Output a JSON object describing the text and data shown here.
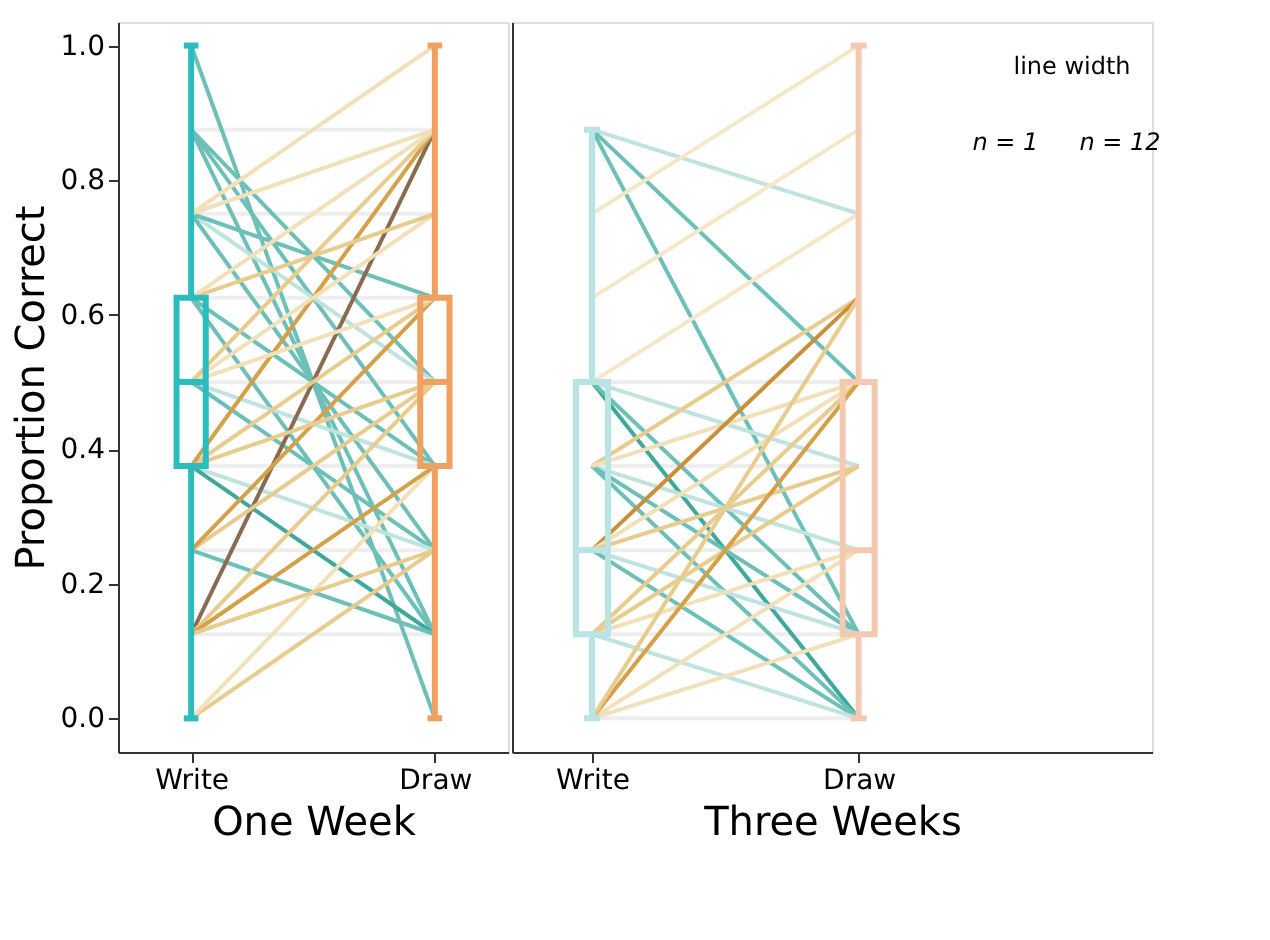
{
  "chart_data": [
    {
      "type": "box",
      "xlabel": "One Week",
      "ylabel": "Proportion Correct",
      "categories": [
        "Write",
        "Draw"
      ],
      "colors": [
        "#2bbdbd",
        "#f0a060"
      ],
      "boxes": [
        {
          "low": 0,
          "q1": 0.375,
          "median": 0.5,
          "q3": 0.625,
          "high": 1.0
        },
        {
          "low": 0,
          "q1": 0.375,
          "median": 0.5,
          "q3": 0.625,
          "high": 1.0
        }
      ],
      "ylim": [
        -0.05,
        1.035
      ],
      "yticks": [
        {
          "value": 0,
          "label": "0.0"
        },
        {
          "value": 0.2,
          "label": "0.2"
        },
        {
          "value": 0.4,
          "label": "0.4"
        },
        {
          "value": 0.6,
          "label": "0.6"
        },
        {
          "value": 0.8,
          "label": "0.8"
        },
        {
          "value": 1,
          "label": "1.0"
        }
      ],
      "grid": false,
      "series": [
        {
          "type": "line",
          "color": "#eeeeee",
          "values": [
            0.875,
            0.875
          ]
        },
        {
          "type": "line",
          "color": "#eeeeee",
          "values": [
            0.75,
            0.75
          ]
        },
        {
          "type": "line",
          "color": "#eeeeee",
          "values": [
            0.625,
            0.625
          ]
        },
        {
          "type": "line",
          "color": "#eeeeee",
          "values": [
            0.5,
            0.5
          ]
        },
        {
          "type": "line",
          "color": "#eeeeee",
          "values": [
            0.375,
            0.375
          ]
        },
        {
          "type": "line",
          "color": "#eeeeee",
          "values": [
            0.25,
            0.25
          ]
        },
        {
          "type": "line",
          "color": "#eeeeee",
          "values": [
            0.125,
            0.125
          ]
        },
        {
          "type": "line",
          "color": "#6cc0b8",
          "values": [
            1.0,
            0.0
          ]
        },
        {
          "type": "line",
          "color": "#6cc0b8",
          "values": [
            0.875,
            0.5
          ]
        },
        {
          "type": "line",
          "color": "#6cc0b8",
          "values": [
            0.875,
            0.375
          ]
        },
        {
          "type": "line",
          "color": "#6cc0b8",
          "values": [
            0.875,
            0.125
          ]
        },
        {
          "type": "line",
          "color": "#bfe3df",
          "values": [
            0.75,
            0.5
          ]
        },
        {
          "type": "line",
          "color": "#6cc0b8",
          "values": [
            0.75,
            0.625
          ]
        },
        {
          "type": "line",
          "color": "#6cc0b8",
          "values": [
            0.75,
            0.25
          ]
        },
        {
          "type": "line",
          "color": "#6cc0b8",
          "values": [
            0.625,
            0.375
          ]
        },
        {
          "type": "line",
          "color": "#6cc0b8",
          "values": [
            0.625,
            0.125
          ]
        },
        {
          "type": "line",
          "color": "#bfe3df",
          "values": [
            0.5,
            0.375
          ]
        },
        {
          "type": "line",
          "color": "#6cc0b8",
          "values": [
            0.5,
            0.25
          ]
        },
        {
          "type": "line",
          "color": "#bfe3df",
          "values": [
            0.375,
            0.25
          ]
        },
        {
          "type": "line",
          "color": "#3fa89c",
          "values": [
            0.375,
            0.125
          ]
        },
        {
          "type": "line",
          "color": "#6cc0b8",
          "values": [
            0.25,
            0.125
          ]
        },
        {
          "type": "line",
          "color": "#e8cc8e",
          "values": [
            0.0,
            0.25
          ]
        },
        {
          "type": "line",
          "color": "#f2e0b8",
          "values": [
            0.0,
            0.375
          ]
        },
        {
          "type": "line",
          "color": "#8a6a50",
          "values": [
            0.125,
            0.875
          ]
        },
        {
          "type": "line",
          "color": "#e8cc8e",
          "values": [
            0.125,
            0.5
          ]
        },
        {
          "type": "line",
          "color": "#d4a04a",
          "values": [
            0.125,
            0.375
          ]
        },
        {
          "type": "line",
          "color": "#e8cc8e",
          "values": [
            0.125,
            0.25
          ]
        },
        {
          "type": "line",
          "color": "#e8cc8e",
          "values": [
            0.25,
            0.5
          ]
        },
        {
          "type": "line",
          "color": "#d4a04a",
          "values": [
            0.25,
            0.625
          ]
        },
        {
          "type": "line",
          "color": "#e8cc8e",
          "values": [
            0.375,
            0.625
          ]
        },
        {
          "type": "line",
          "color": "#d4a04a",
          "values": [
            0.375,
            0.875
          ]
        },
        {
          "type": "line",
          "color": "#e8cc8e",
          "values": [
            0.375,
            0.5
          ]
        },
        {
          "type": "line",
          "color": "#f2e0b8",
          "values": [
            0.5,
            0.625
          ]
        },
        {
          "type": "line",
          "color": "#f2e0b8",
          "values": [
            0.5,
            0.75
          ]
        },
        {
          "type": "line",
          "color": "#e8cc8e",
          "values": [
            0.5,
            0.875
          ]
        },
        {
          "type": "line",
          "color": "#e8cc8e",
          "values": [
            0.625,
            0.75
          ]
        },
        {
          "type": "line",
          "color": "#f2e0b8",
          "values": [
            0.625,
            0.875
          ]
        },
        {
          "type": "line",
          "color": "#f2e0b8",
          "values": [
            0.75,
            0.875
          ]
        },
        {
          "type": "line",
          "color": "#f2e0b8",
          "values": [
            0.75,
            1.0
          ]
        }
      ]
    },
    {
      "type": "box",
      "xlabel": "Three Weeks",
      "categories": [
        "Write",
        "Draw"
      ],
      "colors": [
        "#b8e4e4",
        "#f4c9b0"
      ],
      "boxes": [
        {
          "low": 0,
          "q1": 0.125,
          "median": 0.25,
          "q3": 0.5,
          "high": 0.875
        },
        {
          "low": 0,
          "q1": 0.125,
          "median": 0.25,
          "q3": 0.5,
          "high": 1.0
        }
      ],
      "ylim": [
        -0.05,
        1.035
      ],
      "tick_labels": "x",
      "grid": false,
      "annotations": [
        "line width",
        "n = 1",
        "n = 12"
      ],
      "series": [
        {
          "type": "line",
          "color": "#eeeeee",
          "values": [
            0.5,
            0.5
          ]
        },
        {
          "type": "line",
          "color": "#eeeeee",
          "values": [
            0.375,
            0.375
          ]
        },
        {
          "type": "line",
          "color": "#eeeeee",
          "values": [
            0.25,
            0.25
          ]
        },
        {
          "type": "line",
          "color": "#eeeeee",
          "values": [
            0.125,
            0.125
          ]
        },
        {
          "type": "line",
          "color": "#eeeeee",
          "values": [
            0.0,
            0.0
          ]
        },
        {
          "type": "line",
          "color": "#bfe3df",
          "values": [
            0.875,
            0.75
          ]
        },
        {
          "type": "line",
          "color": "#6cc0b8",
          "values": [
            0.875,
            0.5
          ]
        },
        {
          "type": "line",
          "color": "#6cc0b8",
          "values": [
            0.875,
            0.125
          ]
        },
        {
          "type": "line",
          "color": "#bfe3df",
          "values": [
            0.5,
            0.375
          ]
        },
        {
          "type": "line",
          "color": "#3fa89c",
          "values": [
            0.5,
            0.0
          ]
        },
        {
          "type": "line",
          "color": "#6cc0b8",
          "values": [
            0.5,
            0.125
          ]
        },
        {
          "type": "line",
          "color": "#bfe3df",
          "values": [
            0.375,
            0.25
          ]
        },
        {
          "type": "line",
          "color": "#6cc0b8",
          "values": [
            0.375,
            0.125
          ]
        },
        {
          "type": "line",
          "color": "#6cc0b8",
          "values": [
            0.375,
            0.0
          ]
        },
        {
          "type": "line",
          "color": "#bfe3df",
          "values": [
            0.25,
            0.125
          ]
        },
        {
          "type": "line",
          "color": "#6cc0b8",
          "values": [
            0.25,
            0.0
          ]
        },
        {
          "type": "line",
          "color": "#bfe3df",
          "values": [
            0.125,
            0.0
          ]
        },
        {
          "type": "line",
          "color": "#f5e8c8",
          "values": [
            0.75,
            1.0
          ]
        },
        {
          "type": "line",
          "color": "#f5e8c8",
          "values": [
            0.625,
            0.875
          ]
        },
        {
          "type": "line",
          "color": "#f5e8c8",
          "values": [
            0.5,
            0.75
          ]
        },
        {
          "type": "line",
          "color": "#e8cc8e",
          "values": [
            0.375,
            0.625
          ]
        },
        {
          "type": "line",
          "color": "#f2e0b8",
          "values": [
            0.375,
            0.5
          ]
        },
        {
          "type": "line",
          "color": "#c98f3a",
          "values": [
            0.25,
            0.625
          ]
        },
        {
          "type": "line",
          "color": "#f2e0b8",
          "values": [
            0.25,
            0.5
          ]
        },
        {
          "type": "line",
          "color": "#e8cc8e",
          "values": [
            0.25,
            0.375
          ]
        },
        {
          "type": "line",
          "color": "#f2e0b8",
          "values": [
            0.125,
            0.25
          ]
        },
        {
          "type": "line",
          "color": "#e8cc8e",
          "values": [
            0.125,
            0.5
          ]
        },
        {
          "type": "line",
          "color": "#e8cc8e",
          "values": [
            0.125,
            0.375
          ]
        },
        {
          "type": "line",
          "color": "#f2e0b8",
          "values": [
            0.0,
            0.25
          ]
        },
        {
          "type": "line",
          "color": "#f2e0b8",
          "values": [
            0.0,
            0.125
          ]
        },
        {
          "type": "line",
          "color": "#d4a04a",
          "values": [
            0.0,
            0.5
          ]
        },
        {
          "type": "line",
          "color": "#e8cc8e",
          "values": [
            0.0,
            0.625
          ]
        }
      ]
    }
  ]
}
